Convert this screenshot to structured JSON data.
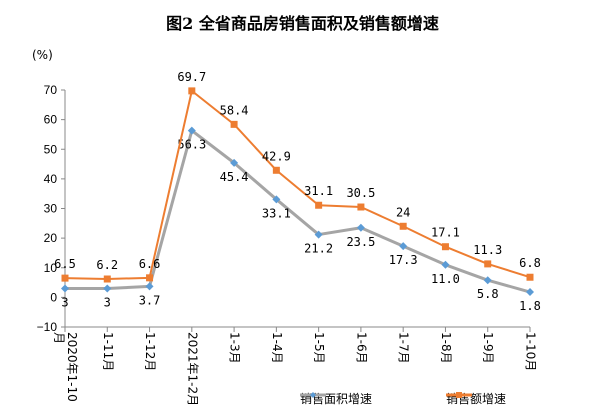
{
  "chart_data": {
    "type": "line",
    "title": "图2 全省商品房销售面积及销售额增速",
    "ylabel": "(%)",
    "ylim": [
      -10,
      70
    ],
    "yticks": [
      -10,
      0,
      10,
      20,
      30,
      40,
      50,
      60,
      70
    ],
    "categories": [
      "2020年1-10月",
      "1-11月",
      "1-12月",
      "2021年1-2月",
      "1-3月",
      "1-4月",
      "1-5月",
      "1-6月",
      "1-7月",
      "1-8月",
      "1-9月",
      "1-10月"
    ],
    "series": [
      {
        "name": "销售面积增速",
        "color": "#a5a5a5",
        "marker_color": "#5b9bd5",
        "marker": "diamond",
        "values": [
          3,
          3,
          3.7,
          56.3,
          45.4,
          33.1,
          21.2,
          23.5,
          17.3,
          11.0,
          5.8,
          1.8
        ],
        "labels": [
          "3",
          "3",
          "3.7",
          "56.3",
          "45.4",
          "33.1",
          "21.2",
          "23.5",
          "17.3",
          "11.0",
          "5.8",
          "1.8"
        ]
      },
      {
        "name": "销售额增速",
        "color": "#ed7d31",
        "marker_color": "#ed7d31",
        "marker": "square",
        "values": [
          6.5,
          6.2,
          6.6,
          69.7,
          58.4,
          42.9,
          31.1,
          30.5,
          24,
          17.1,
          11.3,
          6.8
        ],
        "labels": [
          "6.5",
          "6.2",
          "6.6",
          "69.7",
          "58.4",
          "42.9",
          "31.1",
          "30.5",
          "24",
          "17.1",
          "11.3",
          "6.8"
        ]
      }
    ],
    "legend": "bottom-right",
    "grid": false
  }
}
